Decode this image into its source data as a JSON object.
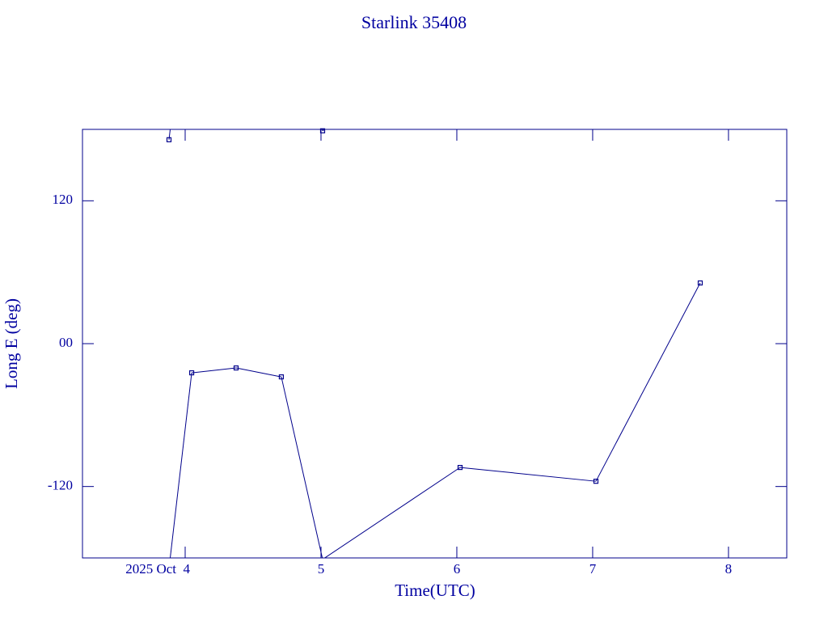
{
  "chart_data": {
    "type": "line",
    "title": "Starlink 35408",
    "x_label": "Time(UTC)",
    "y_label": "Long E (deg)",
    "x": [
      3.881,
      4.048,
      4.375,
      4.708,
      5.012,
      6.024,
      7.024,
      7.792
    ],
    "series": [
      {
        "color": "#00008b",
        "values": [
          171.3,
          -24.5,
          -20.4,
          -27.9,
          178.8,
          -104,
          -115.6,
          51
        ]
      }
    ],
    "xlim": [
      3.244,
      8.429
    ],
    "xticks": [
      {
        "value": 4,
        "label": "2025 Oct  4"
      },
      5,
      6,
      7,
      8
    ],
    "ylim": [
      -180,
      180
    ],
    "yticks": [
      -120,
      {
        "value": 0,
        "label": "00"
      },
      120
    ],
    "wrap": 360
  }
}
